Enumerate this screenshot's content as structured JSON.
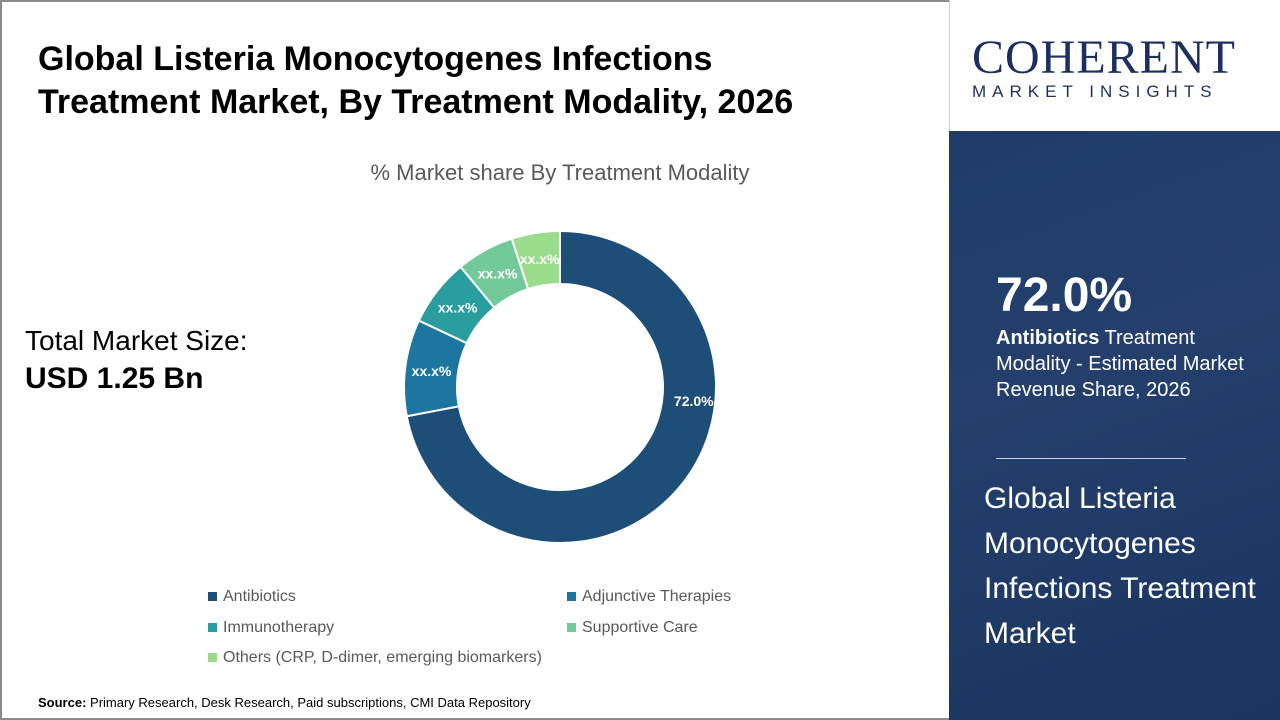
{
  "title_line1": "Global Listeria Monocytogenes Infections",
  "title_line2": "Treatment Market, By Treatment Modality, 2026",
  "total_label": "Total Market Size:",
  "total_value": "USD 1.25 Bn",
  "source_label": "Source:",
  "source_text": " Primary Research, Desk Research, Paid subscriptions, CMI Data Repository",
  "logo": {
    "word": "COHERENT",
    "tagline": "MARKET INSIGHTS"
  },
  "highlight": {
    "value": "72.0%",
    "bold": "Antibiotics",
    "text": " Treatment Modality - Estimated Market Revenue Share, 2026"
  },
  "right_title": "Global Listeria Monocytogenes Infections Treatment Market",
  "chart_data": {
    "type": "pie",
    "donut": true,
    "title": "% Market share By Treatment Modality",
    "categories": [
      "Antibiotics",
      "Adjunctive Therapies",
      "Immunotherapy",
      "Supportive Care",
      "Others (CRP, D-dimer, emerging biomarkers)"
    ],
    "values": [
      72.0,
      10.0,
      7.0,
      6.0,
      5.0
    ],
    "data_labels": [
      "72.0%",
      "xx.x%",
      "xx.x%",
      "xx.x%",
      "xx.x%"
    ],
    "colors": [
      "#1c4e78",
      "#1d76a0",
      "#2a9d9f",
      "#72c99a",
      "#9bdc8c"
    ],
    "legend_position": "bottom"
  }
}
